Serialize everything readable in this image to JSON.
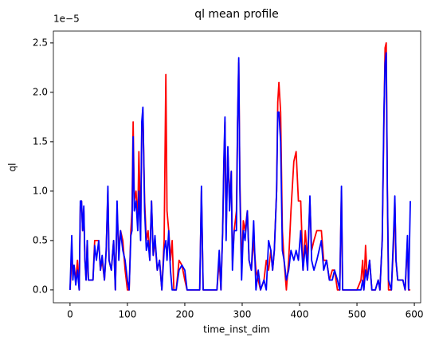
{
  "chart_data": {
    "type": "line",
    "title": "ql mean profile",
    "xlabel": "time_inst_dim",
    "ylabel": "ql",
    "offset_text": "1e−5",
    "x": [
      0,
      3,
      5,
      7,
      10,
      13,
      16,
      18,
      20,
      22,
      24,
      26,
      28,
      30,
      32,
      36,
      40,
      43,
      46,
      50,
      53,
      56,
      60,
      63,
      66,
      68,
      72,
      76,
      79,
      82,
      85,
      88,
      92,
      96,
      100,
      103,
      106,
      108,
      110,
      112,
      115,
      118,
      120,
      123,
      125,
      127,
      130,
      133,
      136,
      139,
      142,
      145,
      148,
      152,
      156,
      160,
      164,
      167,
      169,
      172,
      175,
      178,
      181,
      185,
      190,
      195,
      200,
      204,
      210,
      220,
      226,
      229,
      232,
      240,
      250,
      256,
      260,
      263,
      266,
      268,
      270,
      272,
      275,
      278,
      281,
      283,
      286,
      290,
      292,
      294,
      296,
      299,
      302,
      305,
      309,
      312,
      316,
      320,
      324,
      328,
      332,
      338,
      342,
      346,
      350,
      353,
      356,
      360,
      362,
      364,
      367,
      370,
      373,
      377,
      381,
      385,
      390,
      394,
      398,
      402,
      406,
      410,
      414,
      418,
      421,
      425,
      430,
      434,
      438,
      442,
      447,
      452,
      457,
      461,
      466,
      470,
      473,
      475,
      485,
      500,
      507,
      510,
      512,
      515,
      518,
      522,
      526,
      532,
      537,
      540,
      544,
      547,
      549,
      551,
      553,
      555,
      560,
      564,
      566,
      568,
      571,
      575,
      580,
      584,
      588,
      590,
      593
    ],
    "series": [
      {
        "name": "red",
        "color": "#ff0000",
        "values": [
          0,
          0.3,
          0.2,
          0.25,
          0.1,
          0.3,
          0,
          0.85,
          0.9,
          0.6,
          0.8,
          0.3,
          0.1,
          0.5,
          0.1,
          0.1,
          0.1,
          0.5,
          0.5,
          0.5,
          0.2,
          0.3,
          0.1,
          0.4,
          1.0,
          0.3,
          0.2,
          0.5,
          0,
          0.8,
          0.4,
          0.6,
          0.5,
          0.2,
          0,
          0,
          0.6,
          0.8,
          1.7,
          0.9,
          1.0,
          0.7,
          1.4,
          0.6,
          1.6,
          1.8,
          0.9,
          0.5,
          0.6,
          0.3,
          0.9,
          0.35,
          0.5,
          0.2,
          0.3,
          0,
          0.5,
          2.18,
          0.8,
          0.6,
          0.3,
          0.5,
          0,
          0,
          0.3,
          0.25,
          0.1,
          0,
          0,
          0,
          0,
          1.0,
          0,
          0,
          0,
          0,
          0.3,
          0,
          0.6,
          1.2,
          1.7,
          0.6,
          1.4,
          0.9,
          1.2,
          0.3,
          0.6,
          0.8,
          1.7,
          2.3,
          1.1,
          0.2,
          0.7,
          0.6,
          0.8,
          0.3,
          0.2,
          0.5,
          0.2,
          0.1,
          0,
          0.1,
          0.3,
          0.2,
          0.4,
          0.2,
          0.4,
          1.0,
          1.9,
          2.1,
          1.8,
          0.6,
          0.3,
          0,
          0.3,
          0.8,
          1.3,
          1.4,
          0.9,
          0.9,
          0.2,
          0.6,
          0.3,
          0.9,
          0.4,
          0.5,
          0.6,
          0.6,
          0.6,
          0.3,
          0.3,
          0.1,
          0.2,
          0.2,
          0,
          0,
          1.0,
          0,
          0,
          0,
          0.1,
          0.3,
          0,
          0.45,
          0.1,
          0.3,
          0,
          0,
          0.1,
          0,
          0.5,
          1.7,
          2.45,
          2.5,
          1.0,
          0,
          0,
          0.5,
          0.9,
          0.3,
          0.1,
          0.1,
          0.1,
          0,
          0.5,
          0,
          0
        ]
      },
      {
        "name": "blue",
        "color": "#0000ff",
        "values": [
          0,
          0.55,
          0.1,
          0.25,
          0.05,
          0.2,
          0,
          0.9,
          0.9,
          0.6,
          0.85,
          0.3,
          0.1,
          0.5,
          0.1,
          0.1,
          0.1,
          0.45,
          0.3,
          0.5,
          0.2,
          0.35,
          0.1,
          0.4,
          1.05,
          0.3,
          0.2,
          0.5,
          0,
          0.9,
          0.3,
          0.6,
          0.4,
          0.3,
          0.1,
          0,
          0.55,
          0.6,
          1.55,
          0.8,
          0.9,
          0.6,
          1.0,
          0.5,
          1.7,
          1.85,
          0.8,
          0.4,
          0.5,
          0.3,
          0.9,
          0.35,
          0.55,
          0.2,
          0.3,
          0,
          0.4,
          0.5,
          0.3,
          0.6,
          0.2,
          0,
          0,
          0,
          0.2,
          0.25,
          0.2,
          0,
          0,
          0,
          0,
          1.05,
          0,
          0,
          0,
          0,
          0.4,
          0,
          0.6,
          1.3,
          1.75,
          0.5,
          1.45,
          0.8,
          1.2,
          0.2,
          0.6,
          0.6,
          1.7,
          2.35,
          1.0,
          0.1,
          0.6,
          0.5,
          0.8,
          0.3,
          0.2,
          0.7,
          0,
          0.2,
          0,
          0.1,
          0,
          0.5,
          0.4,
          0.2,
          0.4,
          1.0,
          1.8,
          1.8,
          1.5,
          0.4,
          0.3,
          0.1,
          0.2,
          0.4,
          0.3,
          0.4,
          0.3,
          0.6,
          0.2,
          0.45,
          0.2,
          0.95,
          0.3,
          0.2,
          0.3,
          0.4,
          0.5,
          0.2,
          0.3,
          0.1,
          0.1,
          0.2,
          0.1,
          0,
          1.05,
          0,
          0,
          0,
          0,
          0.1,
          0,
          0.2,
          0.1,
          0.3,
          0,
          0,
          0.1,
          0,
          0.5,
          1.8,
          2.3,
          2.4,
          1.0,
          0.1,
          0,
          0.6,
          0.95,
          0.3,
          0.1,
          0.1,
          0.1,
          0,
          0.55,
          0,
          0.9
        ]
      }
    ],
    "xlim": [
      -29,
      611
    ],
    "ylim": [
      -0.13,
      2.62
    ],
    "xticks": [
      0,
      100,
      200,
      300,
      400,
      500,
      600
    ],
    "yticks": [
      {
        "value": 0,
        "label": "0.0"
      },
      0.5,
      {
        "value": 1,
        "label": "1.0"
      },
      1.5,
      {
        "value": 2,
        "label": "2.0"
      },
      2.5
    ]
  }
}
